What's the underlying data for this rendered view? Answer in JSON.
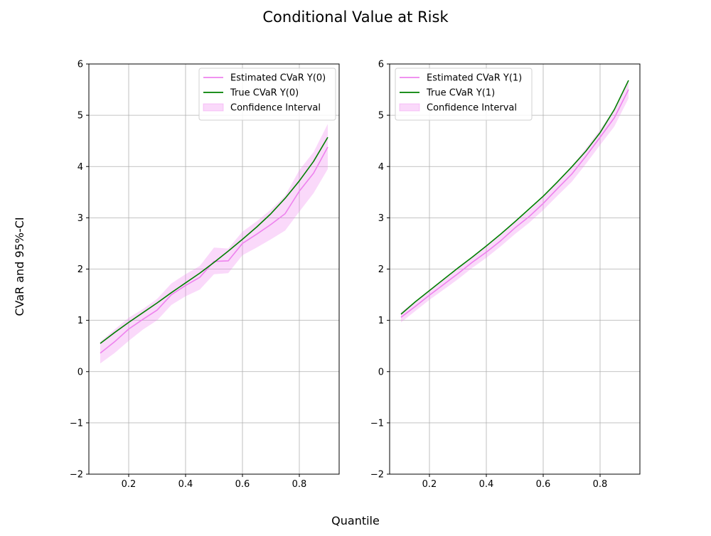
{
  "figure": {
    "title": "Conditional Value at Risk",
    "xlabel": "Quantile",
    "ylabel": "CVaR and 95%-CI"
  },
  "colors": {
    "estimate": "#ee82ee",
    "truth": "#008000",
    "ci_fill": "#ee82ee",
    "grid": "#b0b0b0"
  },
  "chart_data": [
    {
      "type": "line",
      "xlim": [
        0.06,
        0.94
      ],
      "ylim": [
        -2,
        6
      ],
      "xticks": [
        0.2,
        0.4,
        0.6,
        0.8
      ],
      "yticks": [
        -2,
        -1,
        0,
        1,
        2,
        3,
        4,
        5,
        6
      ],
      "grid": true,
      "legend_position": "top-right",
      "x": [
        0.1,
        0.15,
        0.2,
        0.25,
        0.3,
        0.35,
        0.4,
        0.45,
        0.5,
        0.55,
        0.6,
        0.65,
        0.7,
        0.75,
        0.8,
        0.85,
        0.9
      ],
      "series": [
        {
          "name": "Estimated CVaR Y(0)",
          "role": "estimate",
          "values": [
            0.36,
            0.58,
            0.83,
            1.02,
            1.2,
            1.5,
            1.68,
            1.84,
            2.15,
            2.16,
            2.5,
            2.68,
            2.87,
            3.08,
            3.52,
            3.87,
            4.38
          ]
        },
        {
          "name": "True CVaR Y(0)",
          "role": "truth",
          "values": [
            0.55,
            0.76,
            0.96,
            1.15,
            1.34,
            1.54,
            1.73,
            1.92,
            2.13,
            2.35,
            2.58,
            2.82,
            3.08,
            3.38,
            3.72,
            4.1,
            4.57
          ]
        }
      ],
      "confidence_interval": {
        "name": "Confidence Interval",
        "lower": [
          0.16,
          0.36,
          0.6,
          0.82,
          1.0,
          1.3,
          1.47,
          1.6,
          1.9,
          1.92,
          2.27,
          2.42,
          2.58,
          2.75,
          3.12,
          3.48,
          3.95
        ],
        "upper": [
          0.58,
          0.82,
          1.05,
          1.22,
          1.42,
          1.72,
          1.9,
          2.06,
          2.42,
          2.4,
          2.73,
          2.93,
          3.16,
          3.43,
          3.93,
          4.28,
          4.83
        ]
      }
    },
    {
      "type": "line",
      "xlim": [
        0.06,
        0.94
      ],
      "ylim": [
        -2,
        6
      ],
      "xticks": [
        0.2,
        0.4,
        0.6,
        0.8
      ],
      "yticks": [
        -2,
        -1,
        0,
        1,
        2,
        3,
        4,
        5,
        6
      ],
      "grid": true,
      "legend_position": "top-left",
      "x": [
        0.1,
        0.15,
        0.2,
        0.25,
        0.3,
        0.35,
        0.4,
        0.45,
        0.5,
        0.55,
        0.6,
        0.65,
        0.7,
        0.75,
        0.8,
        0.85,
        0.9
      ],
      "series": [
        {
          "name": "Estimated CVaR Y(1)",
          "role": "estimate",
          "values": [
            1.06,
            1.27,
            1.49,
            1.7,
            1.91,
            2.13,
            2.33,
            2.55,
            2.8,
            3.02,
            3.28,
            3.57,
            3.85,
            4.2,
            4.57,
            4.95,
            5.5
          ]
        },
        {
          "name": "True CVaR Y(1)",
          "role": "truth",
          "values": [
            1.12,
            1.36,
            1.58,
            1.8,
            2.02,
            2.23,
            2.45,
            2.68,
            2.92,
            3.17,
            3.42,
            3.7,
            3.99,
            4.3,
            4.66,
            5.11,
            5.68
          ]
        }
      ],
      "confidence_interval": {
        "name": "Confidence Interval",
        "lower": [
          0.96,
          1.18,
          1.4,
          1.6,
          1.8,
          2.02,
          2.22,
          2.44,
          2.68,
          2.9,
          3.15,
          3.43,
          3.7,
          4.05,
          4.42,
          4.78,
          5.33
        ],
        "upper": [
          1.16,
          1.37,
          1.58,
          1.8,
          2.02,
          2.24,
          2.44,
          2.66,
          2.92,
          3.14,
          3.41,
          3.71,
          4.0,
          4.35,
          4.72,
          5.12,
          5.67
        ]
      }
    }
  ]
}
